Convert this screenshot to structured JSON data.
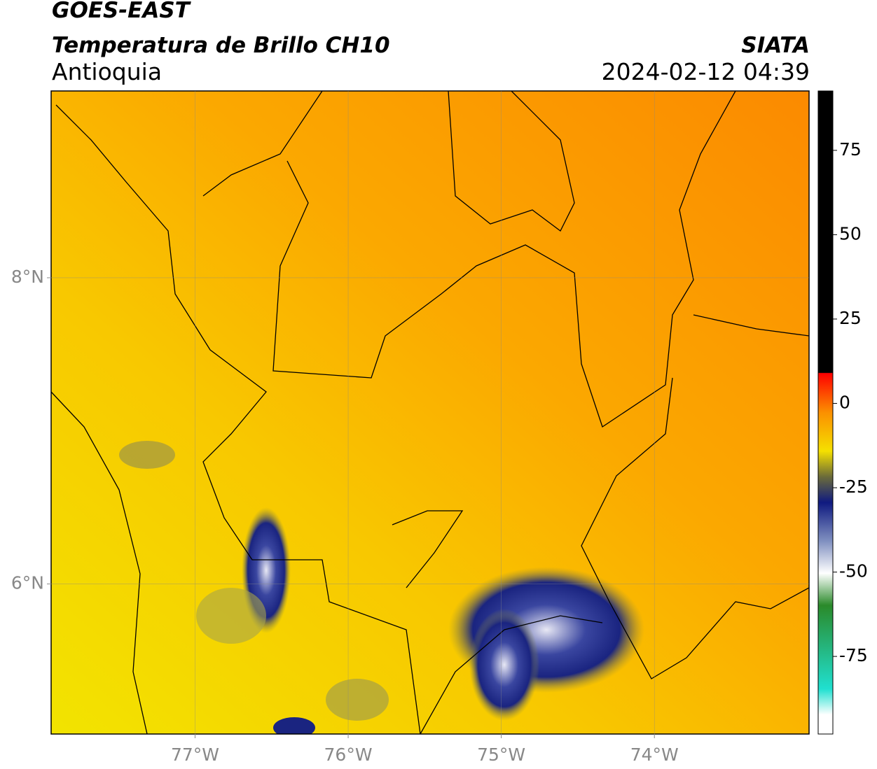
{
  "header": {
    "title": "GOES-EAST",
    "subtitle": "Temperatura de Brillo CH10",
    "region": "Antioquia",
    "source": "SIATA",
    "timestamp": "2024-02-12 04:39"
  },
  "map": {
    "xlim": [
      -77.94,
      -72.99
    ],
    "ylim": [
      5.02,
      9.22
    ],
    "xticks": [
      {
        "value": -77,
        "label": "77°W"
      },
      {
        "value": -76,
        "label": "76°W"
      },
      {
        "value": -75,
        "label": "75°W"
      },
      {
        "value": -74,
        "label": "74°W"
      }
    ],
    "yticks": [
      {
        "value": 8,
        "label": "8°N"
      },
      {
        "value": 6,
        "label": "6°N"
      }
    ],
    "grid": true
  },
  "colorbar": {
    "lim": [
      -98,
      92.6
    ],
    "ticks": [
      75,
      50,
      25,
      0,
      -25,
      -50,
      -75
    ]
  }
}
